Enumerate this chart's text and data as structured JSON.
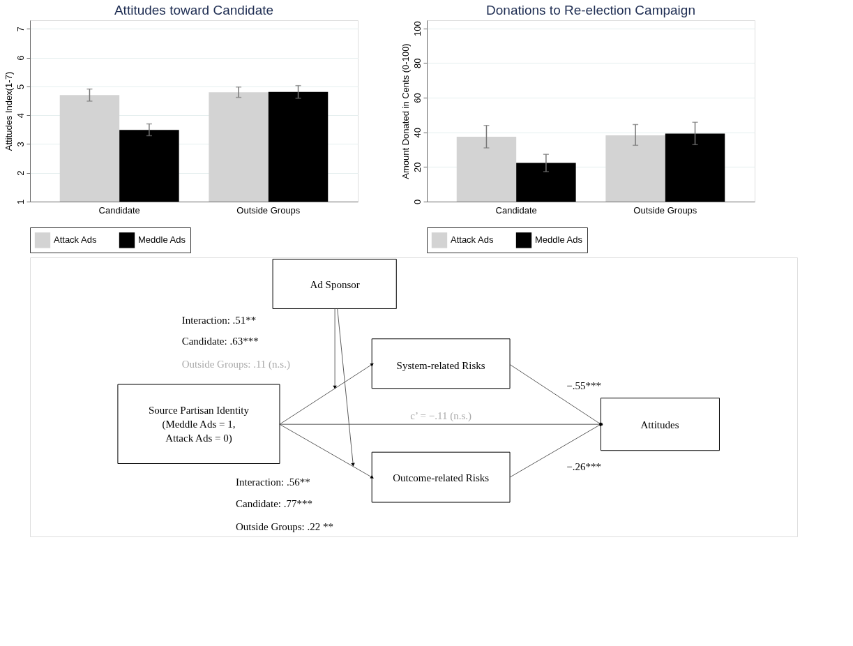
{
  "chart_data": [
    {
      "type": "bar",
      "title": "Attitudes toward Candidate",
      "ylabel": "Attitudes Index(1-7)",
      "categories": [
        "Candidate",
        "Outside Groups"
      ],
      "series": [
        {
          "name": "Attack Ads",
          "color": "#d3d3d3",
          "values": [
            4.7,
            4.8
          ],
          "errors": [
            [
              4.49,
              4.91
            ],
            [
              4.62,
              4.98
            ]
          ]
        },
        {
          "name": "Meddle Ads",
          "color": "#000000",
          "values": [
            3.49,
            4.81
          ],
          "errors": [
            [
              3.29,
              3.7
            ],
            [
              4.59,
              5.03
            ]
          ]
        }
      ],
      "ylim": [
        1,
        7.3
      ],
      "yticks": [
        1,
        2,
        3,
        4,
        5,
        6,
        7
      ],
      "grid": "y",
      "legend": "bottom"
    },
    {
      "type": "bar",
      "title": "Donations to Re-election Campaign",
      "ylabel": "Amount Donated in Cents (0-100)",
      "categories": [
        "Candidate",
        "Outside Groups"
      ],
      "series": [
        {
          "name": "Attack Ads",
          "color": "#d3d3d3",
          "values": [
            37.5,
            38.3
          ],
          "errors": [
            [
              31,
              44
            ],
            [
              32.5,
              44.5
            ]
          ]
        },
        {
          "name": "Meddle Ads",
          "color": "#000000",
          "values": [
            22.3,
            39.3
          ],
          "errors": [
            [
              17.3,
              27.3
            ],
            [
              32.9,
              45.8
            ]
          ]
        }
      ],
      "ylim": [
        0,
        104.7
      ],
      "yticks": [
        0,
        20,
        40,
        60,
        80,
        100
      ],
      "grid": "y",
      "legend": "bottom"
    },
    {
      "type": "other",
      "annotations": [
        "Ad Sponsor",
        "Interaction: .51**",
        "Candidate: .63***",
        "Outside Groups: .11 (n.s.)",
        "System-related Risks",
        "Source Partisan Identity\n(Meddle Ads = 1,\nAttack Ads = 0)",
        "c’ = −.11 (n.s.)",
        "Attitudes",
        "−.55***",
        "−.26***",
        "Outcome-related Risks",
        "Interaction: .56**",
        "Candidate: .77***",
        "Outside Groups: .22 **"
      ]
    }
  ]
}
